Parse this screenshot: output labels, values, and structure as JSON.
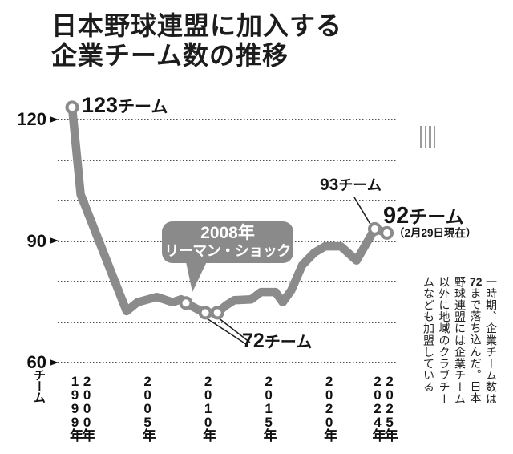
{
  "title": {
    "line1": "日本野球連盟に加入する",
    "line2": "企業チーム数の推移"
  },
  "y_axis": {
    "unit": "チーム"
  },
  "annotations": {
    "start": {
      "value": "123",
      "unit": "チーム"
    },
    "lehman": {
      "line1": "2008年",
      "line2": "リーマン・ショック"
    },
    "bottom": {
      "value": "72",
      "unit": "チーム"
    },
    "y2024": {
      "value": "93",
      "unit": "チーム"
    },
    "latest": {
      "value": "92",
      "unit": "チーム",
      "note": "（2月29日現在）"
    }
  },
  "side_note": {
    "segments": [
      {
        "text": "一時期、企業チーム数は"
      },
      {
        "text": "72",
        "tcy": true
      },
      {
        "text": "まで落ち込んだ。日本野球連盟には企業チーム以外に地域のクラブチームなども加盟している"
      }
    ]
  },
  "colors": {
    "line": "#8b8b8b",
    "callout": "#8a8a8a",
    "grid_dot": "#4d4d4d",
    "text": "#1a1a1a",
    "bars": "#9b9b9b",
    "marker_fill": "#ffffff"
  },
  "chart_data": {
    "type": "line",
    "title": "日本野球連盟に加入する企業チーム数の推移",
    "xlabel": "年",
    "ylabel": "チーム",
    "ylim": [
      60,
      130
    ],
    "yticks": [
      120,
      90,
      60
    ],
    "ygrid_values": [
      60,
      70,
      80,
      90,
      100,
      110,
      120
    ],
    "grid": "dotted-horizontal",
    "legend": false,
    "x_tick_labels": [
      "1999年",
      "2000年",
      "2005年",
      "2010年",
      "2015年",
      "2020年",
      "2024年",
      "2025年"
    ],
    "x_tick_years": [
      1999,
      2000,
      2005,
      2010,
      2015,
      2020,
      2024,
      2025
    ],
    "series": [
      {
        "name": "企業チーム数",
        "points": [
          [
            1999,
            123
          ],
          [
            1999.7,
            101.5
          ],
          [
            2003.5,
            72.7
          ],
          [
            2004.4,
            74.9
          ],
          [
            2006,
            76.2
          ],
          [
            2007.3,
            74.9
          ],
          [
            2008,
            75.6
          ],
          [
            2008.4,
            74.7
          ],
          [
            2009.4,
            73.1
          ],
          [
            2010,
            72.3
          ],
          [
            2011,
            72.3
          ],
          [
            2011.7,
            74.1
          ],
          [
            2012.4,
            75.4
          ],
          [
            2013.8,
            75.6
          ],
          [
            2014.6,
            77.4
          ],
          [
            2015.8,
            77.4
          ],
          [
            2016.4,
            74.9
          ],
          [
            2017.1,
            77.8
          ],
          [
            2018,
            84
          ],
          [
            2019,
            87.1
          ],
          [
            2019.9,
            88.7
          ],
          [
            2021.2,
            88.7
          ],
          [
            2022.5,
            85.2
          ],
          [
            2024,
            93
          ],
          [
            2025,
            92
          ]
        ]
      }
    ],
    "markers": [
      {
        "year": 1999,
        "value": 123,
        "label": "123チーム"
      },
      {
        "year": 2008.4,
        "value": 74.7,
        "label": "2008年リーマン・ショック"
      },
      {
        "year": 2010,
        "value": 72.3,
        "label": "72チーム"
      },
      {
        "year": 2011,
        "value": 72.3,
        "label": "72チーム"
      },
      {
        "year": 2024,
        "value": 93,
        "label": "93チーム"
      },
      {
        "year": 2025,
        "value": 92,
        "label": "92チーム（2月29日現在）"
      }
    ],
    "key_values": {
      "1999": 123,
      "2010": 72,
      "2011": 72,
      "2024": 93,
      "2025_as_of_feb29": 92
    },
    "annotation_event": "2008年 リーマン・ショック"
  }
}
